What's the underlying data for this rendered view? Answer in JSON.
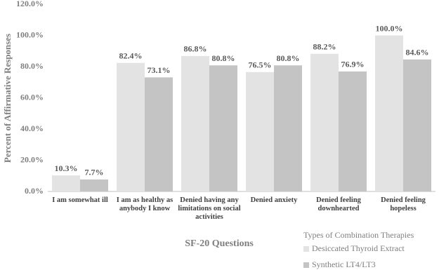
{
  "chart_data": {
    "type": "bar",
    "x_label": "SF-20 Questions",
    "y_label": "Percent of Affirmative Responses",
    "categories": [
      "I am somewhat ill",
      "I am as healthy as anybody I know",
      "Denied having any limitations on social activities",
      "Denied anxiety",
      "Denied feeling downhearted",
      "Denied feeling hopeless"
    ],
    "series": [
      {
        "name": "Desiccated Thyroid Extract",
        "color": "#e3e3e3",
        "values": [
          10.3,
          82.4,
          86.8,
          76.5,
          88.2,
          100.0
        ],
        "value_labels": [
          "10.3%",
          "82.4%",
          "86.8%",
          "76.5%",
          "88.2%",
          "100.0%"
        ]
      },
      {
        "name": "Synthetic LT4/LT3",
        "color": "#c4c4c4",
        "values": [
          7.7,
          73.1,
          80.8,
          80.8,
          76.9,
          84.6
        ],
        "value_labels": [
          "7.7%",
          "73.1%",
          "80.8%",
          "80.8%",
          "76.9%",
          "84.6%"
        ]
      }
    ],
    "legend_title": "Types of Combination Therapies",
    "legend_position": "bottom-right",
    "ylim": [
      0,
      120
    ],
    "yticks": [
      {
        "value": 0,
        "label": "0.0%"
      },
      {
        "value": 20,
        "label": "20.0%"
      },
      {
        "value": 40,
        "label": "40.0%"
      },
      {
        "value": 60,
        "label": "60.0%"
      },
      {
        "value": 80,
        "label": "80.0%"
      },
      {
        "value": 100,
        "label": "100.0%"
      },
      {
        "value": 120,
        "label": "120.0%"
      }
    ],
    "grid": false
  }
}
